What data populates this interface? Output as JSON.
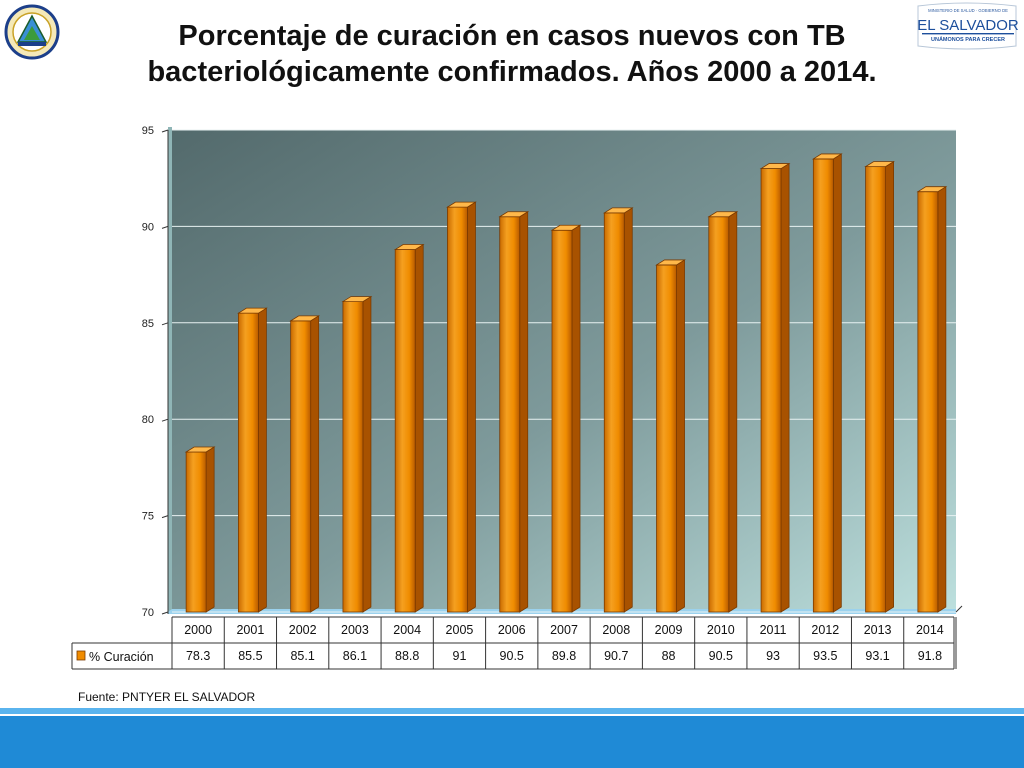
{
  "header": {
    "title_line1": "Porcentaje de curación en casos nuevos con TB",
    "title_line2": "bacteriológicamente confirmados. Años 2000 a 2014.",
    "seal_icon": "coat-of-arms-icon",
    "logo": {
      "small_text": "MINISTERIO DE SALUD · GOBIERNO DE",
      "name": "EL SALVADOR",
      "slogan": "UNÁMONOS PARA CRECER"
    }
  },
  "chart_data": {
    "type": "bar",
    "categories": [
      "2000",
      "2001",
      "2002",
      "2003",
      "2004",
      "2005",
      "2006",
      "2007",
      "2008",
      "2009",
      "2010",
      "2011",
      "2012",
      "2013",
      "2014"
    ],
    "series": [
      {
        "name": "% Curación",
        "values": [
          78.3,
          85.5,
          85.1,
          86.1,
          88.8,
          91,
          90.5,
          89.8,
          90.7,
          88,
          90.5,
          93,
          93.5,
          93.1,
          91.8
        ]
      }
    ],
    "value_labels": [
      "78.3",
      "85.5",
      "85.1",
      "86.1",
      "88.8",
      "91",
      "90.5",
      "89.8",
      "90.7",
      "88",
      "90.5",
      "93",
      "93.5",
      "93.1",
      "91.8"
    ],
    "ylim": [
      70,
      95
    ],
    "yticks": [
      70,
      75,
      80,
      85,
      90,
      95
    ],
    "grid": true,
    "legend": "data-table",
    "bar_color": "#f08c00",
    "bar_edge_color": "#7a3a00",
    "xlabel": "",
    "ylabel": ""
  },
  "footer": {
    "source": "Fuente: PNTYER EL SALVADOR"
  },
  "colors": {
    "footer_bar": "#1f8ad6",
    "footer_bar_light": "#5ab4ee"
  }
}
